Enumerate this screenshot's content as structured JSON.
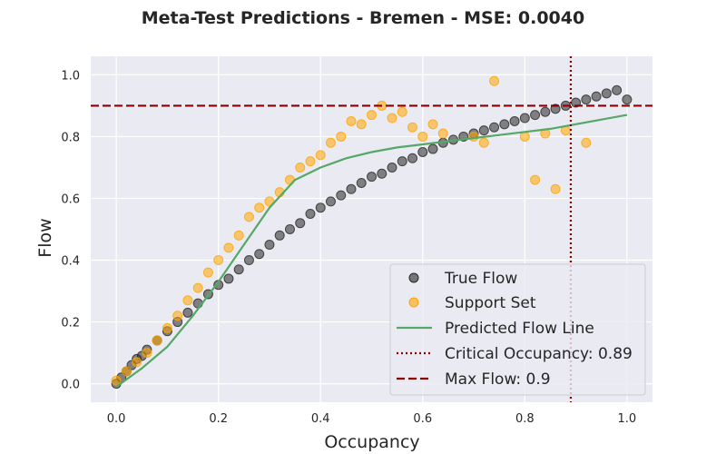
{
  "chart_data": {
    "type": "scatter",
    "title": "Meta-Test Predictions - Bremen - MSE: 0.0040",
    "xlabel": "Occupancy",
    "ylabel": "Flow",
    "xlim": [
      -0.05,
      1.05
    ],
    "ylim": [
      -0.06,
      1.06
    ],
    "xticks": [
      "0.0",
      "0.2",
      "0.4",
      "0.6",
      "0.8",
      "1.0"
    ],
    "yticks": [
      "0.0",
      "0.2",
      "0.4",
      "0.6",
      "0.8",
      "1.0"
    ],
    "grid": true,
    "legend_position": "lower-right",
    "legend": [
      "True Flow",
      "Support Set",
      "Predicted Flow Line",
      "Critical Occupancy: 0.89",
      "Max Flow: 0.9"
    ],
    "series": [
      {
        "name": "True Flow",
        "kind": "scatter",
        "color": "#262626",
        "x": [
          0.0,
          0.01,
          0.02,
          0.03,
          0.04,
          0.05,
          0.06,
          0.08,
          0.1,
          0.12,
          0.14,
          0.16,
          0.18,
          0.2,
          0.22,
          0.24,
          0.26,
          0.28,
          0.3,
          0.32,
          0.34,
          0.36,
          0.38,
          0.4,
          0.42,
          0.44,
          0.46,
          0.48,
          0.5,
          0.52,
          0.54,
          0.56,
          0.58,
          0.6,
          0.62,
          0.64,
          0.66,
          0.68,
          0.7,
          0.72,
          0.74,
          0.76,
          0.78,
          0.8,
          0.82,
          0.84,
          0.86,
          0.88,
          0.9,
          0.92,
          0.94,
          0.96,
          0.98,
          1.0
        ],
        "y": [
          0.0,
          0.02,
          0.04,
          0.06,
          0.08,
          0.09,
          0.11,
          0.14,
          0.17,
          0.2,
          0.23,
          0.26,
          0.29,
          0.32,
          0.34,
          0.37,
          0.4,
          0.42,
          0.45,
          0.48,
          0.5,
          0.52,
          0.55,
          0.57,
          0.59,
          0.61,
          0.63,
          0.65,
          0.67,
          0.68,
          0.7,
          0.72,
          0.73,
          0.75,
          0.76,
          0.78,
          0.79,
          0.8,
          0.81,
          0.82,
          0.83,
          0.84,
          0.85,
          0.86,
          0.87,
          0.88,
          0.89,
          0.9,
          0.91,
          0.92,
          0.93,
          0.94,
          0.95,
          0.92
        ]
      },
      {
        "name": "Support Set",
        "kind": "scatter",
        "color": "#ffa500",
        "x": [
          0.0,
          0.02,
          0.04,
          0.06,
          0.08,
          0.1,
          0.12,
          0.14,
          0.16,
          0.18,
          0.2,
          0.22,
          0.24,
          0.26,
          0.28,
          0.3,
          0.32,
          0.34,
          0.36,
          0.38,
          0.4,
          0.42,
          0.44,
          0.46,
          0.48,
          0.5,
          0.52,
          0.54,
          0.56,
          0.58,
          0.6,
          0.62,
          0.64,
          0.7,
          0.72,
          0.74,
          0.8,
          0.82,
          0.84,
          0.86,
          0.88,
          0.92
        ],
        "y": [
          0.01,
          0.04,
          0.07,
          0.1,
          0.14,
          0.18,
          0.22,
          0.27,
          0.31,
          0.36,
          0.4,
          0.44,
          0.48,
          0.54,
          0.57,
          0.59,
          0.62,
          0.66,
          0.7,
          0.72,
          0.74,
          0.78,
          0.8,
          0.85,
          0.84,
          0.87,
          0.9,
          0.86,
          0.88,
          0.83,
          0.8,
          0.84,
          0.81,
          0.8,
          0.78,
          0.98,
          0.8,
          0.66,
          0.81,
          0.63,
          0.82,
          0.78
        ]
      },
      {
        "name": "Predicted Flow Line",
        "kind": "line",
        "color": "#55a868",
        "x": [
          0.0,
          0.05,
          0.1,
          0.15,
          0.2,
          0.25,
          0.3,
          0.35,
          0.4,
          0.45,
          0.5,
          0.55,
          0.6,
          0.65,
          0.7,
          0.75,
          0.8,
          0.85,
          0.9,
          0.95,
          1.0
        ],
        "y": [
          -0.01,
          0.05,
          0.12,
          0.22,
          0.33,
          0.45,
          0.57,
          0.66,
          0.7,
          0.73,
          0.75,
          0.765,
          0.775,
          0.785,
          0.795,
          0.805,
          0.815,
          0.825,
          0.84,
          0.855,
          0.87
        ]
      }
    ],
    "reference_lines": [
      {
        "name": "Critical Occupancy: 0.89",
        "axis": "x",
        "value": 0.89,
        "style": "dotted",
        "color": "#8b0000"
      },
      {
        "name": "Max Flow: 0.9",
        "axis": "y",
        "value": 0.9,
        "style": "dashed",
        "color": "#8b0000"
      }
    ]
  }
}
